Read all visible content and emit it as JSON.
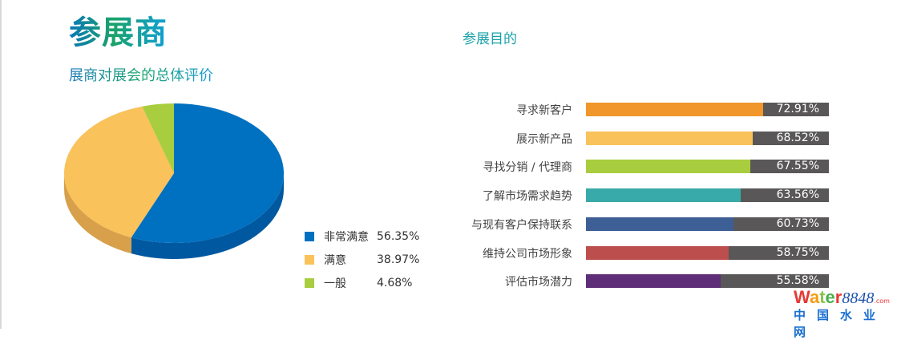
{
  "title": "参展商",
  "subtitle": "展商对展会的总体评价",
  "chart_data": [
    {
      "type": "pie",
      "title": "展商对展会的总体评价",
      "style": "3d",
      "slices": [
        {
          "label": "非常满意",
          "value": 56.35,
          "display": "56.35%",
          "color": "#0070c0"
        },
        {
          "label": "满意",
          "value": 38.97,
          "display": "38.97%",
          "color": "#f9c25a"
        },
        {
          "label": "一般",
          "value": 4.68,
          "display": "4.68%",
          "color": "#a8cd3f"
        }
      ],
      "legend": "bottom-right"
    },
    {
      "type": "bar",
      "orientation": "horizontal",
      "title": "参展目的",
      "xlim": [
        0,
        100
      ],
      "categories": [
        "寻求新客户",
        "展示新产品",
        "寻找分销 / 代理商",
        "了解市场需求趋势",
        "与现有客户保持联系",
        "维持公司市场形象",
        "评估市场潜力"
      ],
      "values": [
        72.91,
        68.52,
        67.55,
        63.56,
        60.73,
        58.75,
        55.58
      ],
      "labels": [
        "72.91%",
        "68.52%",
        "67.55%",
        "63.56%",
        "60.73%",
        "58.75%",
        "55.58%"
      ],
      "colors": [
        "#f0962b",
        "#f9c25a",
        "#a8cd3f",
        "#38aaa9",
        "#3d5f96",
        "#bc4f4d",
        "#5e2f78"
      ],
      "remainder_color": "#595757"
    }
  ],
  "logo": {
    "brand": "Water8848",
    "suffix": ".com",
    "cn": "中国水业网"
  }
}
